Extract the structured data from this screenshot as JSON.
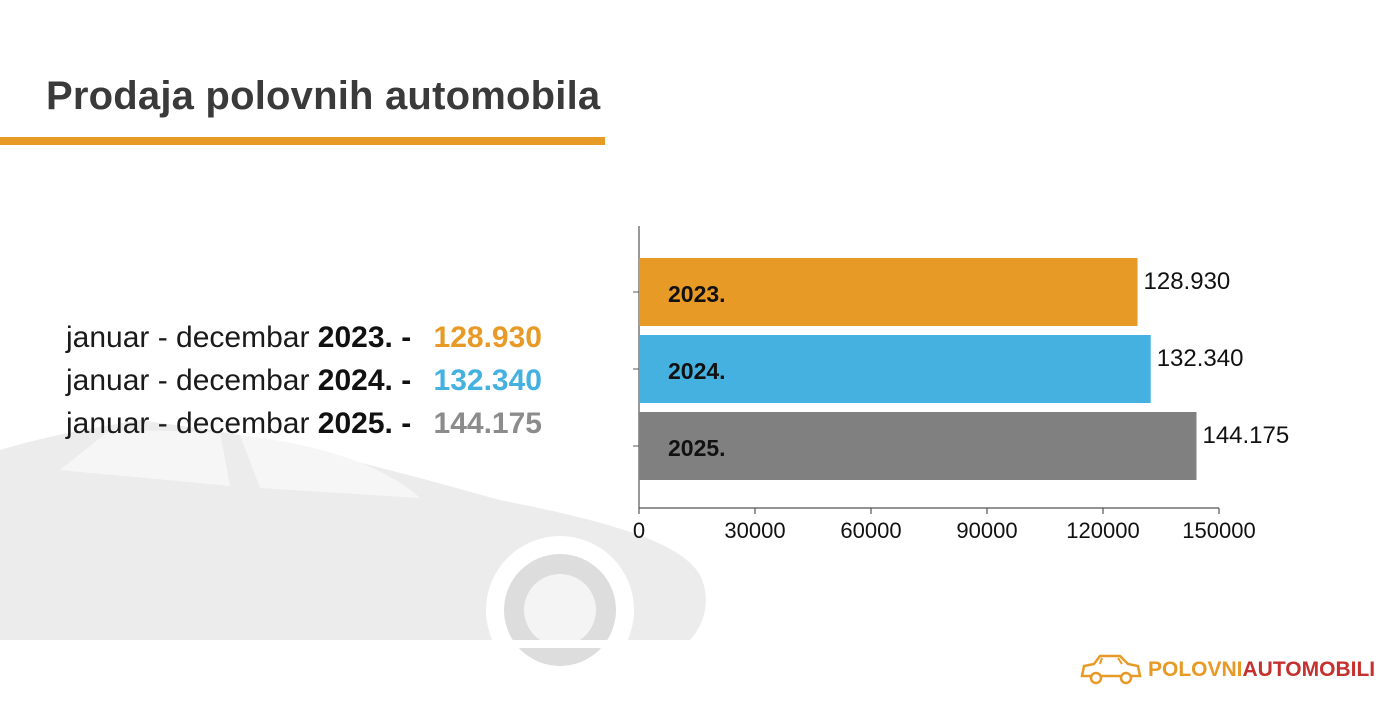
{
  "title": "Prodaja polovnih automobila",
  "summary": [
    {
      "prefix": "januar - decembar ",
      "year": "2023.",
      "sep": " - ",
      "value": "128.930",
      "color": "#e79a26"
    },
    {
      "prefix": "januar - decembar ",
      "year": "2024.",
      "sep": " - ",
      "value": "132.340",
      "color": "#45b1e0"
    },
    {
      "prefix": "januar - decembar ",
      "year": "2025.",
      "sep": " - ",
      "value": "144.175",
      "color": "#8c8c8c"
    }
  ],
  "chart_data": {
    "type": "bar",
    "orientation": "horizontal",
    "categories": [
      "2023.",
      "2024.",
      "2025."
    ],
    "values": [
      128930,
      132340,
      144175
    ],
    "data_labels": [
      "128.930",
      "132.340",
      "144.175"
    ],
    "colors": [
      "#e79a26",
      "#45b1e0",
      "#808080"
    ],
    "xlim": [
      0,
      150000
    ],
    "xticks": [
      0,
      30000,
      60000,
      90000,
      120000,
      150000
    ],
    "xtick_labels": [
      "0",
      "30000",
      "60000",
      "90000",
      "120000",
      "150000"
    ],
    "title": "",
    "xlabel": "",
    "ylabel": "",
    "grid": false
  },
  "logo": {
    "part1": "POLOVNI",
    "part2": "AUTOMOBILI",
    "icon": "car-logo-icon"
  }
}
